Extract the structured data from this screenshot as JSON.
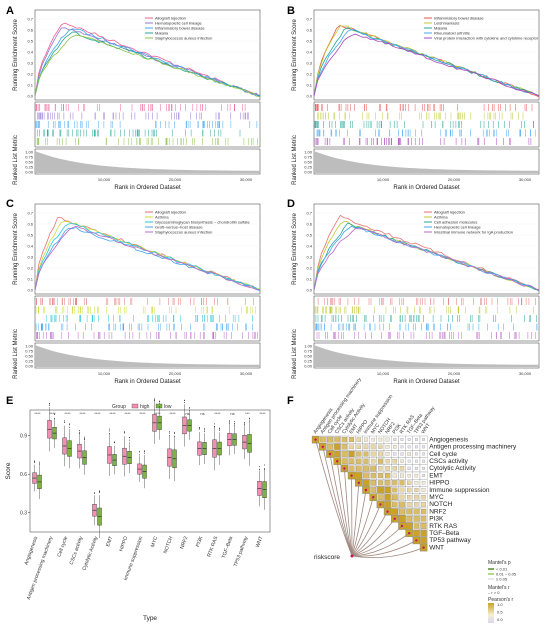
{
  "panels": [
    {
      "label": "A",
      "legend": [
        "Allograft rejection",
        "Hematopoietic cell lineage",
        "Inflammatory bowel disease",
        "Malaria",
        "Staphylococcus aureus infection"
      ],
      "colors": [
        "#f06292",
        "#9575cd",
        "#42a5f5",
        "#26a69a",
        "#8bc34a"
      ]
    },
    {
      "label": "B",
      "legend": [
        "Inflammatory bowel disease",
        "Leishmaniasis",
        "Malaria",
        "Rheumatoid arthritis",
        "Viral protein interaction with cytokine and cytokine receptor"
      ],
      "colors": [
        "#ef5350",
        "#c0ca33",
        "#26a69a",
        "#42a5f5",
        "#ab47bc"
      ]
    },
    {
      "label": "C",
      "legend": [
        "Allograft rejection",
        "Asthma",
        "Glycosaminoglycan biosynthesis – chondroitin sulfate",
        "Graft–versus–host disease",
        "Staphylococcus aureus infection"
      ],
      "colors": [
        "#e57373",
        "#cddc39",
        "#26c6da",
        "#42a5f5",
        "#ba68c8"
      ]
    },
    {
      "label": "D",
      "legend": [
        "Allograft rejection",
        "Asthma",
        "Cell adhesion molecules",
        "Hematopoietic cell lineage",
        "Intestinal immune network for IgA production"
      ],
      "colors": [
        "#e57373",
        "#c0ca33",
        "#26a69a",
        "#42a5f5",
        "#ba68c8"
      ]
    }
  ],
  "gsea_axes": {
    "ylabel_top": "Running Enrichment Score",
    "ylabel_bottom": "Ranked List Metric",
    "xlabel": "Rank in Ordered Dataset",
    "x_ticks": [
      "10,000",
      "20,000",
      "30,000"
    ],
    "y_ticks_top": [
      "0.0",
      "0.1",
      "0.2",
      "0.3",
      "0.4",
      "0.5",
      "0.6",
      "0.7"
    ],
    "y_ticks_bottom": [
      "1.00",
      "0.75",
      "0.50",
      "0.25",
      "0.00"
    ]
  },
  "chart_data": [
    {
      "type": "line",
      "panel": "A",
      "xlabel": "Rank in Ordered Dataset",
      "ylabel": "Running Enrichment Score",
      "x_ticks": [
        "10,000",
        "20,000",
        "30,000"
      ],
      "series": [
        {
          "name": "Allograft rejection"
        },
        {
          "name": "Hematopoietic cell lineage"
        },
        {
          "name": "Inflammatory bowel disease"
        },
        {
          "name": "Malaria"
        },
        {
          "name": "Staphylococcus aureus infection"
        }
      ]
    },
    {
      "type": "line",
      "panel": "B",
      "xlabel": "Rank in Ordered Dataset",
      "ylabel": "Running Enrichment Score",
      "x_ticks": [
        "10,000",
        "20,000",
        "30,000"
      ],
      "series": [
        {
          "name": "Inflammatory bowel disease"
        },
        {
          "name": "Leishmaniasis"
        },
        {
          "name": "Malaria"
        },
        {
          "name": "Rheumatoid arthritis"
        },
        {
          "name": "Viral protein interaction with cytokine and cytokine receptor"
        }
      ]
    },
    {
      "type": "line",
      "panel": "C",
      "xlabel": "Rank in Ordered Dataset",
      "ylabel": "Running Enrichment Score",
      "x_ticks": [
        "10,000",
        "20,000",
        "30,000"
      ],
      "series": [
        {
          "name": "Allograft rejection"
        },
        {
          "name": "Asthma"
        },
        {
          "name": "Glycosaminoglycan biosynthesis – chondroitin sulfate"
        },
        {
          "name": "Graft–versus–host disease"
        },
        {
          "name": "Staphylococcus aureus infection"
        }
      ]
    },
    {
      "type": "line",
      "panel": "D",
      "xlabel": "Rank in Ordered Dataset",
      "ylabel": "Running Enrichment Score",
      "x_ticks": [
        "10,000",
        "20,000",
        "30,000"
      ],
      "series": [
        {
          "name": "Allograft rejection"
        },
        {
          "name": "Asthma"
        },
        {
          "name": "Cell adhesion molecules"
        },
        {
          "name": "Hematopoietic cell lineage"
        },
        {
          "name": "Intestinal immune network for IgA production"
        }
      ]
    },
    {
      "type": "box",
      "panel": "E",
      "xlabel": "Type",
      "ylabel": "Score",
      "legend_title": "Group",
      "groups": [
        "high",
        "low"
      ],
      "group_colors": [
        "#f48fb1",
        "#7cb342"
      ],
      "y_ticks": [
        "0.3",
        "0.6",
        "0.9"
      ],
      "categories": [
        "Angiogenesis",
        "Antigen processing machinery",
        "Cell cycle",
        "CSCs activity",
        "Cytolytic Activity",
        "EMT",
        "HIPPO",
        "Immune suppression",
        "MYC",
        "NOTCH",
        "NRF2",
        "PI3K",
        "RTK RAS",
        "TGF–Beta",
        "TP53 pathway",
        "WNT"
      ],
      "significance": [
        "****",
        "****",
        "****",
        "****",
        "****",
        "****",
        "****",
        "****",
        "****",
        "****",
        "ns",
        "ns",
        "****",
        "ns",
        "***",
        "****"
      ],
      "medians_high": [
        0.57,
        0.95,
        0.82,
        0.78,
        0.32,
        0.75,
        0.74,
        0.64,
        1.0,
        0.73,
        0.98,
        0.8,
        0.8,
        0.87,
        0.85,
        0.49
      ],
      "medians_low": [
        0.54,
        0.92,
        0.8,
        0.73,
        0.27,
        0.71,
        0.73,
        0.62,
        1.0,
        0.72,
        0.98,
        0.8,
        0.8,
        0.87,
        0.84,
        0.48
      ]
    },
    {
      "type": "heatmap",
      "panel": "F",
      "row_label": "riskscore",
      "pathways": [
        "Angiogenesis",
        "Antigen processing machinery",
        "Cell cycle",
        "CSCs activity",
        "Cytolytic Activity",
        "EMT",
        "HIPPO",
        "Immune suppression",
        "MYC",
        "NOTCH",
        "NRF2",
        "PI3K",
        "RTK RAS",
        "TGF–Beta",
        "TP53 pathway",
        "WNT"
      ],
      "legend_p_title": "Mantel's p",
      "legend_p": [
        "< 0.01",
        "0.01 – 0.05",
        "≥ 0.05"
      ],
      "legend_r_title": "Mantel's r",
      "legend_r": [
        "– r > 0"
      ],
      "legend_pearson_title": "Pearson's r",
      "legend_pearson_ticks": [
        "1.0",
        "0.5",
        "0.0"
      ]
    }
  ]
}
